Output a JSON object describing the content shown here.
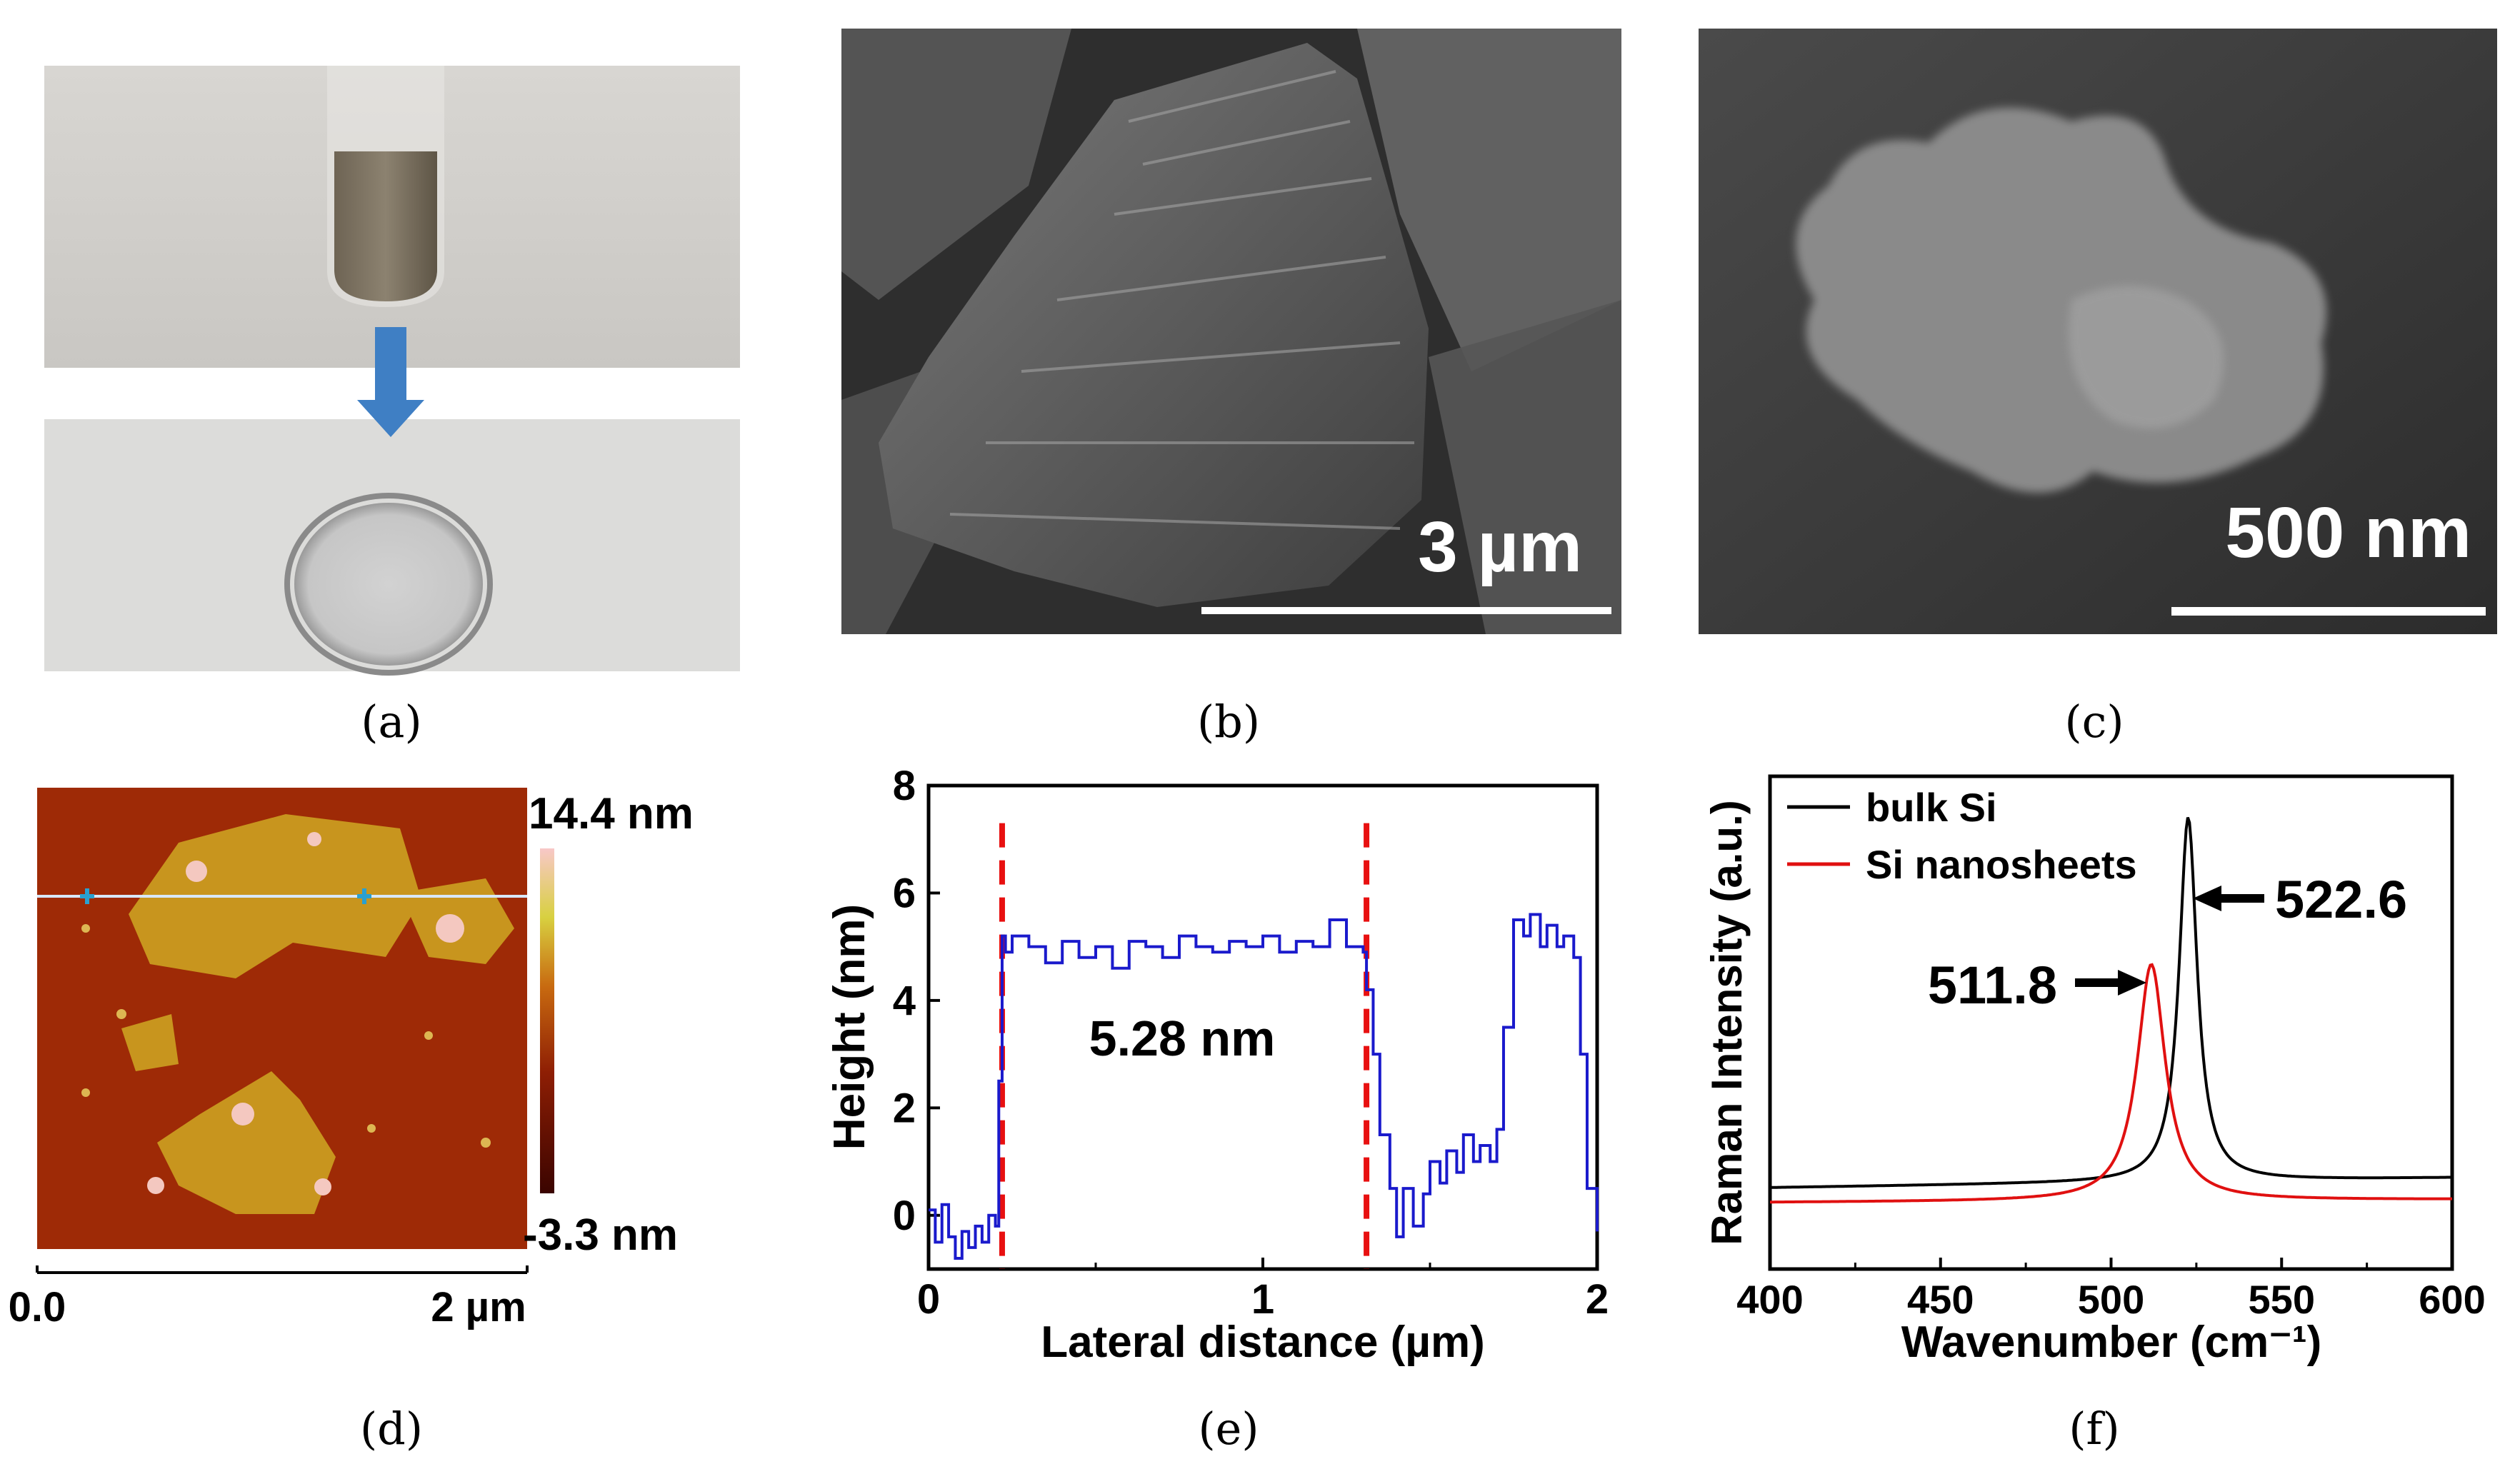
{
  "panel_labels": [
    "(a)",
    "(b)",
    "(c)",
    "(d)",
    "(e)",
    "(f)"
  ],
  "sem_b": {
    "scale_bar": "3 µm"
  },
  "sem_c": {
    "scale_bar": "500 nm"
  },
  "afm": {
    "colorbar_max": "14.4 nm",
    "colorbar_min": "-3.3 nm",
    "x_start": "0.0",
    "x_end": "2 µm",
    "colors": {
      "dark": "#5a0a00",
      "mid": "#b03a08",
      "light": "#e0c040",
      "peak": "#f6c8c0"
    }
  },
  "chart_data": [
    {
      "type": "line",
      "panel": "e",
      "xlabel": "Lateral distance (µm)",
      "ylabel": "Height (nm)",
      "xlim": [
        0,
        2
      ],
      "ylim": [
        -1,
        8
      ],
      "xticks": [
        "0",
        "1",
        "2"
      ],
      "yticks": [
        "0",
        "2",
        "4",
        "6",
        "8"
      ],
      "annotation": "5.28 nm",
      "vlines": [
        0.22,
        1.31
      ],
      "series": [
        {
          "color": "#1a1acc",
          "x": [
            0,
            0.02,
            0.04,
            0.06,
            0.08,
            0.1,
            0.12,
            0.14,
            0.16,
            0.18,
            0.2,
            0.21,
            0.22,
            0.23,
            0.25,
            0.3,
            0.35,
            0.4,
            0.45,
            0.5,
            0.55,
            0.6,
            0.65,
            0.7,
            0.75,
            0.8,
            0.85,
            0.9,
            0.95,
            1.0,
            1.05,
            1.1,
            1.15,
            1.2,
            1.25,
            1.3,
            1.31,
            1.33,
            1.35,
            1.38,
            1.4,
            1.42,
            1.45,
            1.48,
            1.5,
            1.53,
            1.55,
            1.58,
            1.6,
            1.63,
            1.65,
            1.68,
            1.7,
            1.72,
            1.75,
            1.78,
            1.8,
            1.83,
            1.85,
            1.88,
            1.9,
            1.93,
            1.95,
            1.97,
            2.0
          ],
          "y": [
            0.1,
            -0.5,
            0.2,
            -0.4,
            -0.8,
            -0.3,
            -0.6,
            -0.2,
            -0.5,
            0.0,
            -0.2,
            2.5,
            5.2,
            4.9,
            5.2,
            5.0,
            4.7,
            5.1,
            4.8,
            5.0,
            4.6,
            5.1,
            5.0,
            4.8,
            5.2,
            5.0,
            4.9,
            5.1,
            5.0,
            5.2,
            4.9,
            5.1,
            5.0,
            5.5,
            5.0,
            4.9,
            4.2,
            3.0,
            1.5,
            0.5,
            -0.4,
            0.5,
            -0.2,
            0.4,
            1.0,
            0.6,
            1.2,
            0.8,
            1.5,
            1.0,
            1.3,
            1.0,
            1.6,
            3.5,
            5.5,
            5.2,
            5.6,
            5.0,
            5.4,
            5.0,
            5.2,
            4.8,
            3.0,
            0.5,
            -0.3
          ]
        }
      ]
    },
    {
      "type": "line",
      "panel": "f",
      "xlabel": "Wavenumber (cm⁻¹)",
      "ylabel": "Raman Intensity (a.u.)",
      "xlim": [
        400,
        600
      ],
      "ylim": [
        0,
        1
      ],
      "xticks": [
        "400",
        "450",
        "500",
        "550",
        "600"
      ],
      "annotations": [
        "522.6",
        "511.8"
      ],
      "series": [
        {
          "name": "bulk Si",
          "color": "#000000",
          "peak": 522.6,
          "height": 0.74,
          "width": 3.2,
          "base": 0.165,
          "slope": 0.0001
        },
        {
          "name": "Si nanosheets",
          "color": "#e01010",
          "peak": 511.8,
          "height": 0.48,
          "width": 5.0,
          "base": 0.135,
          "slope": 3e-05
        }
      ]
    }
  ]
}
